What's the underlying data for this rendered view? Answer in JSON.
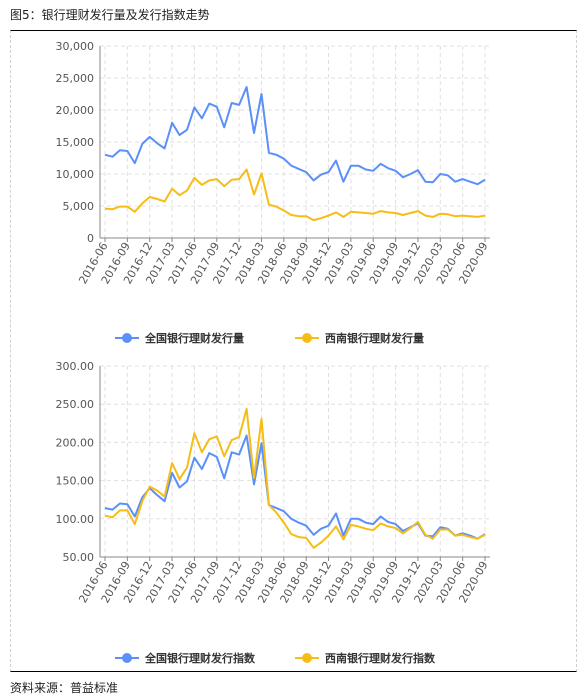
{
  "figure_title": "图5：银行理财发行量及发行指数走势",
  "source": "资料来源：普益标准",
  "colors": {
    "national": "#5b8ff9",
    "southwest": "#f6bd16",
    "grid": "#e0e0e0",
    "axis": "#888888"
  },
  "chart_data": [
    {
      "type": "line",
      "xlabel": "",
      "ylabel": "",
      "ylim": [
        0,
        30000
      ],
      "y_ticks": [
        0,
        5000,
        10000,
        15000,
        20000,
        25000,
        30000
      ],
      "y_tick_labels": [
        "0",
        "5,000",
        "10,000",
        "15,000",
        "20,000",
        "25,000",
        "30,000"
      ],
      "grid": true,
      "legend_position": "bottom",
      "x_tick_labels": [
        "2016-06",
        "2016-09",
        "2016-12",
        "2017-03",
        "2017-06",
        "2017-09",
        "2017-12",
        "2018-03",
        "2018-06",
        "2018-09",
        "2018-12",
        "2019-03",
        "2019-06",
        "2019-09",
        "2019-12",
        "2020-03",
        "2020-06",
        "2020-09"
      ],
      "series": [
        {
          "name": "全国银行理财发行量",
          "values": [
            13000,
            12700,
            13700,
            13600,
            11700,
            14700,
            15800,
            14800,
            14000,
            18000,
            16100,
            16900,
            20400,
            18700,
            21000,
            20500,
            17300,
            21100,
            20800,
            23600,
            16400,
            22500,
            13300,
            13000,
            12400,
            11300,
            10800,
            10300,
            9000,
            9900,
            10300,
            12100,
            8800,
            11300,
            11300,
            10700,
            10500,
            11600,
            10900,
            10500,
            9500,
            10000,
            10600,
            8800,
            8700,
            10000,
            9800,
            8800,
            9200,
            8800,
            8400,
            9100
          ]
        },
        {
          "name": "西南银行理财发行量",
          "values": [
            4600,
            4500,
            4900,
            4900,
            4100,
            5400,
            6400,
            6100,
            5700,
            7700,
            6700,
            7400,
            9400,
            8300,
            9000,
            9200,
            8100,
            9100,
            9200,
            10700,
            6800,
            10100,
            5200,
            4900,
            4300,
            3600,
            3400,
            3400,
            2800,
            3100,
            3500,
            4000,
            3300,
            4100,
            4000,
            3900,
            3800,
            4200,
            4000,
            3900,
            3600,
            3900,
            4200,
            3500,
            3300,
            3800,
            3700,
            3400,
            3500,
            3400,
            3300,
            3500
          ]
        }
      ]
    },
    {
      "type": "line",
      "xlabel": "",
      "ylabel": "",
      "ylim": [
        50,
        300
      ],
      "y_ticks": [
        50,
        100,
        150,
        200,
        250,
        300
      ],
      "y_tick_labels": [
        "50.00",
        "100.00",
        "150.00",
        "200.00",
        "250.00",
        "300.00"
      ],
      "grid": true,
      "legend_position": "bottom",
      "x_tick_labels": [
        "2016-06",
        "2016-09",
        "2016-12",
        "2017-03",
        "2017-06",
        "2017-09",
        "2017-12",
        "2018-03",
        "2018-06",
        "2018-09",
        "2018-12",
        "2019-03",
        "2019-06",
        "2019-09",
        "2019-12",
        "2020-03",
        "2020-06",
        "2020-09"
      ],
      "series": [
        {
          "name": "全国银行理财发行指数",
          "values": [
            114,
            112,
            120,
            119,
            103,
            128,
            140,
            131,
            123,
            160,
            141,
            149,
            180,
            165,
            186,
            181,
            153,
            187,
            184,
            209,
            145,
            199,
            118,
            114,
            110,
            100,
            95,
            91,
            79,
            87,
            91,
            107,
            78,
            100,
            100,
            95,
            93,
            103,
            96,
            93,
            84,
            89,
            94,
            78,
            77,
            89,
            87,
            78,
            81,
            78,
            74,
            80
          ]
        },
        {
          "name": "西南银行理财发行指数",
          "values": [
            104,
            102,
            111,
            111,
            93,
            123,
            142,
            137,
            129,
            173,
            152,
            167,
            212,
            187,
            204,
            208,
            182,
            203,
            207,
            244,
            153,
            231,
            118,
            108,
            95,
            80,
            76,
            75,
            62,
            69,
            78,
            90,
            73,
            92,
            90,
            87,
            85,
            94,
            90,
            88,
            81,
            88,
            96,
            79,
            74,
            86,
            86,
            78,
            79,
            76,
            74,
            79
          ]
        }
      ]
    }
  ]
}
